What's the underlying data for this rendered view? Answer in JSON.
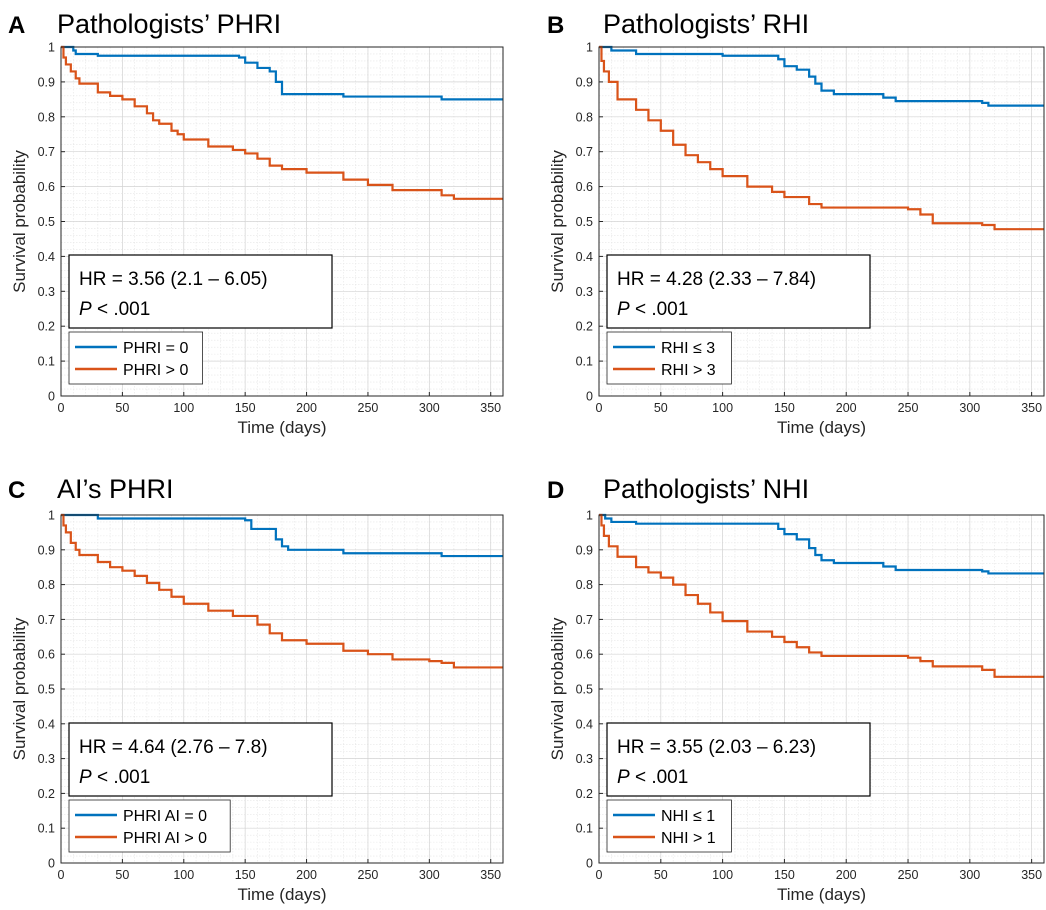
{
  "colors": {
    "group_low": "#0072BD",
    "group_high": "#D95319",
    "grid": "#e6e6e6",
    "axis": "#262626"
  },
  "chart_data": [
    {
      "panel_letter": "A",
      "type": "line",
      "title": "Pathologists’ PHRI",
      "xlabel": "Time (days)",
      "ylabel": "Survival probability",
      "xlim": [
        0,
        360
      ],
      "ylim": [
        0,
        1
      ],
      "xticks": [
        "0",
        "50",
        "100",
        "150",
        "200",
        "250",
        "300",
        "350"
      ],
      "yticks": [
        "0",
        "0.1",
        "0.2",
        "0.3",
        "0.4",
        "0.5",
        "0.6",
        "0.7",
        "0.8",
        "0.9",
        "1"
      ],
      "grid": true,
      "step": true,
      "stats_line1": "HR = 3.56 (2.1 – 6.05)",
      "stats_p": "P",
      "stats_p_rest": " < .001",
      "legend_position": "bottom-left",
      "series": [
        {
          "name": "PHRI = 0",
          "color": "#0072BD",
          "x": [
            0,
            10,
            12,
            30,
            145,
            150,
            160,
            170,
            175,
            180,
            230,
            310,
            360
          ],
          "y": [
            1,
            0.99,
            0.98,
            0.975,
            0.97,
            0.955,
            0.94,
            0.93,
            0.9,
            0.865,
            0.858,
            0.85,
            0.85
          ]
        },
        {
          "name": "PHRI > 0",
          "color": "#D95319",
          "x": [
            0,
            2,
            4,
            8,
            12,
            15,
            30,
            40,
            50,
            60,
            70,
            75,
            80,
            90,
            95,
            100,
            120,
            140,
            150,
            160,
            170,
            180,
            200,
            230,
            250,
            270,
            310,
            320,
            360
          ],
          "y": [
            1,
            0.97,
            0.95,
            0.93,
            0.91,
            0.895,
            0.87,
            0.86,
            0.85,
            0.83,
            0.81,
            0.79,
            0.78,
            0.76,
            0.75,
            0.735,
            0.715,
            0.705,
            0.695,
            0.68,
            0.66,
            0.65,
            0.64,
            0.62,
            0.605,
            0.59,
            0.575,
            0.565,
            0.565
          ]
        }
      ]
    },
    {
      "panel_letter": "B",
      "type": "line",
      "title": "Pathologists’ RHI",
      "xlabel": "Time (days)",
      "ylabel": "Survival probability",
      "xlim": [
        0,
        360
      ],
      "ylim": [
        0,
        1
      ],
      "xticks": [
        "0",
        "50",
        "100",
        "150",
        "200",
        "250",
        "300",
        "350"
      ],
      "yticks": [
        "0",
        "0.1",
        "0.2",
        "0.3",
        "0.4",
        "0.5",
        "0.6",
        "0.7",
        "0.8",
        "0.9",
        "1"
      ],
      "grid": true,
      "step": true,
      "stats_line1": "HR = 4.28 (2.33 – 7.84)",
      "stats_p": "P",
      "stats_p_rest": " < .001",
      "legend_position": "bottom-left",
      "series": [
        {
          "name": "RHI ≤ 3",
          "color": "#0072BD",
          "x": [
            0,
            10,
            30,
            100,
            145,
            150,
            160,
            170,
            175,
            180,
            190,
            230,
            240,
            310,
            315,
            360
          ],
          "y": [
            1,
            0.99,
            0.98,
            0.975,
            0.965,
            0.945,
            0.935,
            0.915,
            0.895,
            0.875,
            0.865,
            0.855,
            0.845,
            0.84,
            0.832,
            0.832
          ]
        },
        {
          "name": "RHI > 3",
          "color": "#D95319",
          "x": [
            0,
            2,
            4,
            8,
            15,
            30,
            40,
            50,
            60,
            70,
            80,
            90,
            100,
            120,
            140,
            150,
            170,
            180,
            250,
            260,
            270,
            310,
            320,
            360
          ],
          "y": [
            1,
            0.96,
            0.93,
            0.9,
            0.85,
            0.82,
            0.79,
            0.76,
            0.72,
            0.69,
            0.67,
            0.65,
            0.63,
            0.6,
            0.585,
            0.57,
            0.55,
            0.54,
            0.535,
            0.52,
            0.495,
            0.49,
            0.478,
            0.478
          ]
        }
      ]
    },
    {
      "panel_letter": "C",
      "type": "line",
      "title": "AI’s PHRI",
      "xlabel": "Time (days)",
      "ylabel": "Survival probability",
      "xlim": [
        0,
        360
      ],
      "ylim": [
        0,
        1
      ],
      "xticks": [
        "0",
        "50",
        "100",
        "150",
        "200",
        "250",
        "300",
        "350"
      ],
      "yticks": [
        "0",
        "0.1",
        "0.2",
        "0.3",
        "0.4",
        "0.5",
        "0.6",
        "0.7",
        "0.8",
        "0.9",
        "1"
      ],
      "grid": true,
      "step": true,
      "stats_line1": "HR = 4.64 (2.76 – 7.8)",
      "stats_p": "P",
      "stats_p_rest": " < .001",
      "legend_position": "bottom-left",
      "series": [
        {
          "name": "PHRI AI = 0",
          "color": "#0072BD",
          "x": [
            0,
            30,
            150,
            155,
            175,
            180,
            185,
            230,
            310,
            360
          ],
          "y": [
            1,
            0.99,
            0.985,
            0.96,
            0.93,
            0.91,
            0.9,
            0.89,
            0.882,
            0.882
          ]
        },
        {
          "name": "PHRI AI > 0",
          "color": "#D95319",
          "x": [
            0,
            2,
            4,
            8,
            12,
            15,
            30,
            40,
            50,
            60,
            70,
            80,
            90,
            100,
            120,
            140,
            160,
            170,
            180,
            200,
            230,
            250,
            270,
            300,
            310,
            320,
            360
          ],
          "y": [
            1,
            0.97,
            0.95,
            0.92,
            0.9,
            0.885,
            0.865,
            0.85,
            0.84,
            0.825,
            0.805,
            0.785,
            0.765,
            0.745,
            0.725,
            0.71,
            0.685,
            0.66,
            0.64,
            0.63,
            0.61,
            0.6,
            0.585,
            0.58,
            0.575,
            0.562,
            0.562
          ]
        }
      ]
    },
    {
      "panel_letter": "D",
      "type": "line",
      "title": "Pathologists’ NHI",
      "xlabel": "Time (days)",
      "ylabel": "Survival probability",
      "xlim": [
        0,
        360
      ],
      "ylim": [
        0,
        1
      ],
      "xticks": [
        "0",
        "50",
        "100",
        "150",
        "200",
        "250",
        "300",
        "350"
      ],
      "yticks": [
        "0",
        "0.1",
        "0.2",
        "0.3",
        "0.4",
        "0.5",
        "0.6",
        "0.7",
        "0.8",
        "0.9",
        "1"
      ],
      "grid": true,
      "step": true,
      "stats_line1": "HR = 3.55 (2.03 – 6.23)",
      "stats_p": "P",
      "stats_p_rest": " < .001",
      "legend_position": "bottom-left",
      "series": [
        {
          "name": "NHI ≤ 1",
          "color": "#0072BD",
          "x": [
            0,
            5,
            10,
            30,
            145,
            150,
            160,
            170,
            175,
            180,
            190,
            230,
            240,
            310,
            315,
            360
          ],
          "y": [
            1,
            0.99,
            0.98,
            0.975,
            0.96,
            0.945,
            0.93,
            0.905,
            0.885,
            0.87,
            0.862,
            0.852,
            0.842,
            0.838,
            0.832,
            0.832
          ]
        },
        {
          "name": "NHI > 1",
          "color": "#D95319",
          "x": [
            0,
            2,
            4,
            8,
            15,
            30,
            40,
            50,
            60,
            70,
            80,
            90,
            100,
            120,
            140,
            150,
            160,
            170,
            180,
            250,
            260,
            270,
            310,
            320,
            360
          ],
          "y": [
            1,
            0.97,
            0.94,
            0.91,
            0.88,
            0.85,
            0.835,
            0.82,
            0.8,
            0.77,
            0.745,
            0.72,
            0.695,
            0.665,
            0.65,
            0.635,
            0.62,
            0.605,
            0.595,
            0.59,
            0.58,
            0.565,
            0.555,
            0.535,
            0.535
          ]
        }
      ]
    }
  ]
}
